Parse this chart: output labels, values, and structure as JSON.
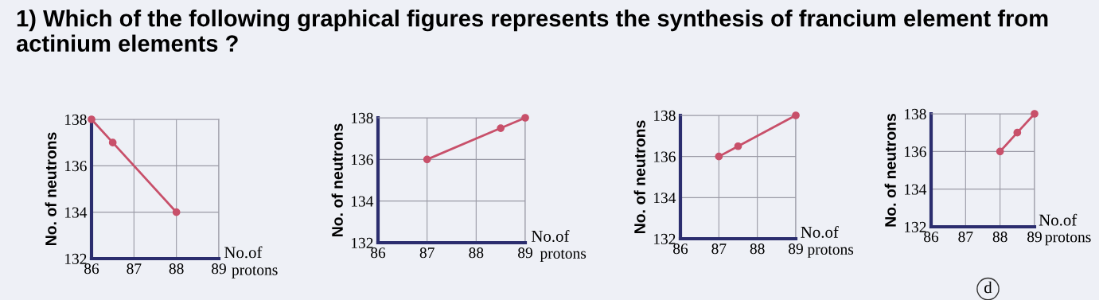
{
  "chart_data": [
    {
      "type": "line",
      "title": "1) Which of the following graphical figures represents the synthesis of francium element from actinium elements ?",
      "xlabel": "No.of protons",
      "ylabel": "No. of neutrons",
      "x": [
        86,
        86.5,
        88
      ],
      "values": [
        138,
        137,
        134
      ],
      "color": "#c8506a",
      "xlim": [
        86,
        89
      ],
      "xticks": [
        86,
        87,
        88,
        89
      ],
      "ylim": [
        132,
        138
      ],
      "yticks": [
        132,
        134,
        136,
        138
      ],
      "grid": true,
      "marker": "circle",
      "line_style": "solid"
    },
    {
      "type": "line",
      "xlabel": "No.of protons",
      "ylabel": "No. of neutrons",
      "x": [
        87,
        88.5,
        89
      ],
      "values": [
        136,
        137.5,
        138
      ],
      "color": "#c8506a",
      "xlim": [
        86,
        89
      ],
      "xticks": [
        86,
        87,
        88,
        89
      ],
      "ylim": [
        132,
        138
      ],
      "yticks": [
        132,
        134,
        136,
        138
      ],
      "grid": true,
      "marker": "circle",
      "line_style": "solid"
    },
    {
      "type": "line",
      "xlabel": "No.of protons",
      "ylabel": "No. of neutrons",
      "x": [
        87,
        87.5,
        89
      ],
      "values": [
        136,
        136.5,
        138
      ],
      "color": "#c8506a",
      "xlim": [
        86,
        89
      ],
      "xticks": [
        86,
        87,
        88,
        89
      ],
      "ylim": [
        132,
        138
      ],
      "yticks": [
        132,
        134,
        136,
        138
      ],
      "grid": true,
      "marker": "circle",
      "line_style": "solid"
    },
    {
      "type": "line",
      "xlabel": "No.of protons",
      "ylabel": "No. of neutrons",
      "x": [
        88,
        88.5,
        89
      ],
      "values": [
        136,
        137,
        138
      ],
      "color": "#c8506a",
      "xlim": [
        86,
        89
      ],
      "xticks": [
        86,
        87,
        88,
        89
      ],
      "ylim": [
        132,
        138
      ],
      "yticks": [
        132,
        134,
        136,
        138
      ],
      "grid": true,
      "marker": "circle",
      "line_style": "solid",
      "annotations": [
        "d"
      ]
    }
  ]
}
